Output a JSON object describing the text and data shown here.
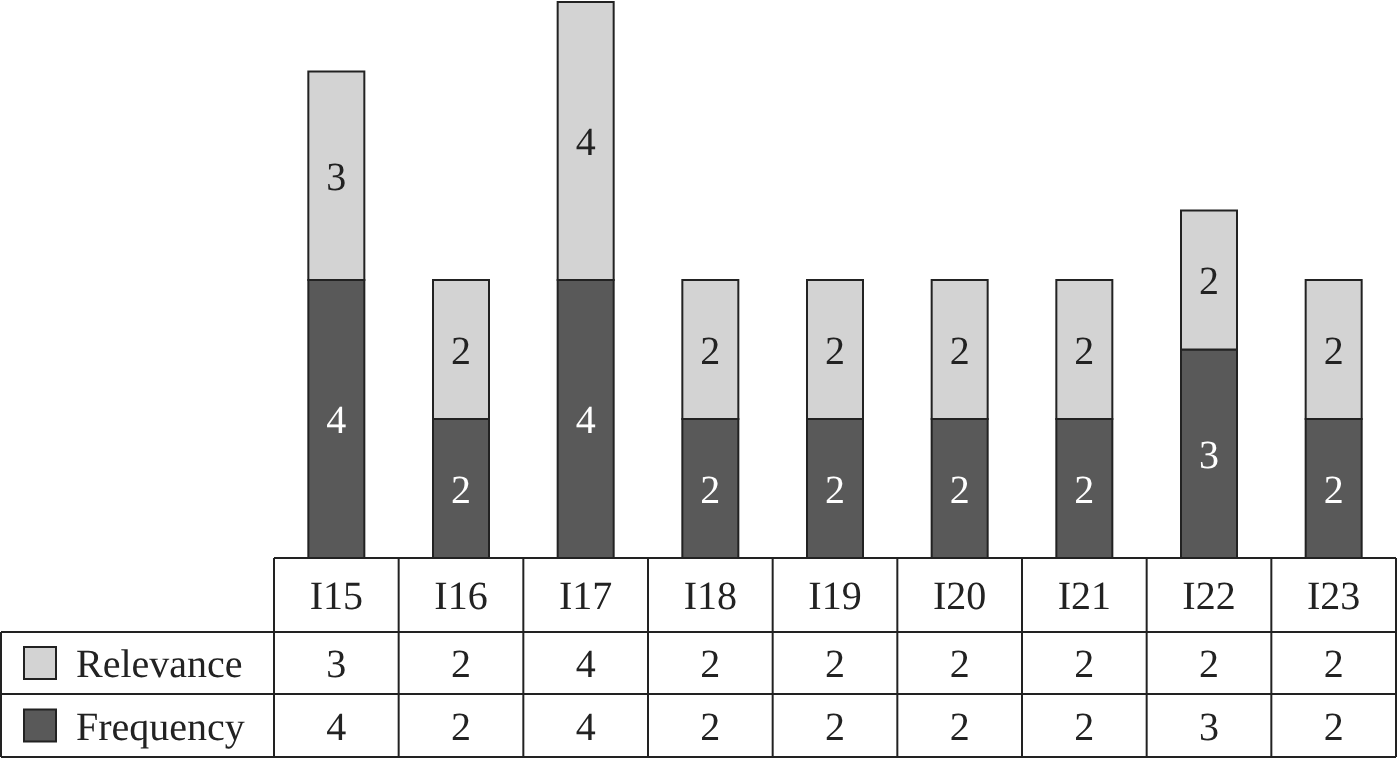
{
  "chart_data": {
    "type": "bar",
    "stacked": true,
    "legend": "bottom left",
    "categories": [
      "I15",
      "I16",
      "I17",
      "I18",
      "I19",
      "I20",
      "I21",
      "I22",
      "I23"
    ],
    "series": [
      {
        "name": "Frequency",
        "color": "#595959",
        "values": [
          4,
          2,
          4,
          2,
          2,
          2,
          2,
          3,
          2
        ],
        "value_labels": [
          "4",
          "2",
          "4",
          "2",
          "2",
          "2",
          "2",
          "3",
          "2"
        ]
      },
      {
        "name": "Relevance",
        "color": "#d3d3d3",
        "values": [
          3,
          2,
          4,
          2,
          2,
          2,
          2,
          2,
          2
        ],
        "value_labels": [
          "3",
          "2",
          "4",
          "2",
          "2",
          "2",
          "2",
          "2",
          "2"
        ]
      }
    ],
    "annotations": [
      "3",
      "2",
      "4",
      "2",
      "2",
      "2",
      "2",
      "2",
      "2",
      "4",
      "2",
      "4",
      "2",
      "2",
      "2",
      "2",
      "3",
      "2"
    ]
  }
}
